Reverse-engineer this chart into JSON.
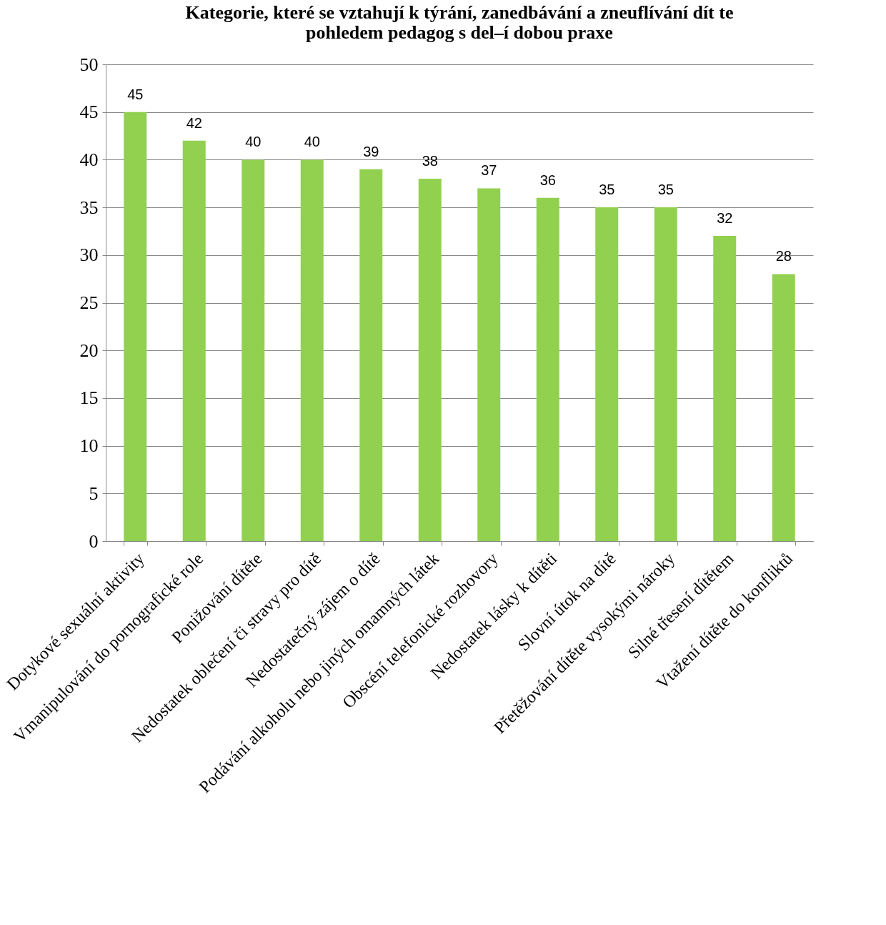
{
  "chart_data": {
    "type": "bar",
    "title": [
      "Kategorie, které se vztahují k týrání, zanedbávání a zneuflívání dít  te",
      "pohledem pedagog   s del–í dobou praxe"
    ],
    "categories": [
      "Dotykové sexuální aktivity",
      "Vmanipulování do pornografické role",
      "Ponižování dítěte",
      "Nedostatek oblečení či stravy pro dítě",
      "Nedostatečný zájem o dítě",
      "Podávání alkoholu nebo jiných omamných látek",
      "Obscéní telefonické rozhovory",
      "Nedostatek lásky k dítěti",
      "Slovní útok na dítě",
      "Přetěžování dítěte vysokými nároky",
      "Silné třesení dítětem",
      "Vtažení dítěte do konfliktů"
    ],
    "values": [
      45,
      42,
      40,
      40,
      39,
      38,
      37,
      36,
      35,
      35,
      32,
      28
    ],
    "color": "#92d050",
    "ylim": [
      0,
      50
    ],
    "yticks": [
      0,
      5,
      10,
      15,
      20,
      25,
      30,
      35,
      40,
      45,
      50
    ],
    "grid": "y",
    "data_labels": true
  }
}
